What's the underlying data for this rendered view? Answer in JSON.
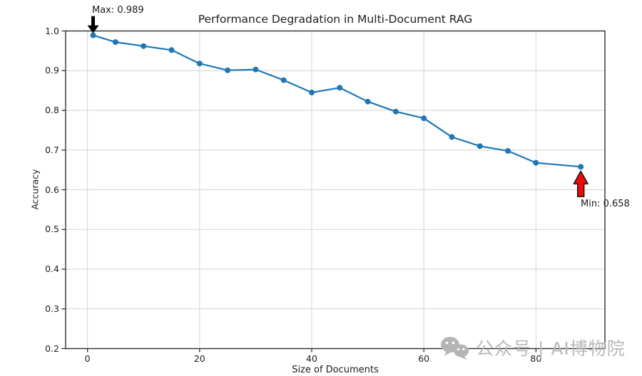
{
  "chart_data": {
    "type": "line",
    "title": "Performance Degradation in Multi-Document RAG",
    "xlabel": "Size of Documents",
    "ylabel": "Accuracy",
    "x": [
      1,
      5,
      10,
      15,
      20,
      25,
      30,
      35,
      40,
      45,
      50,
      55,
      60,
      65,
      70,
      75,
      80,
      88
    ],
    "y": [
      0.989,
      0.972,
      0.962,
      0.952,
      0.918,
      0.901,
      0.903,
      0.876,
      0.845,
      0.857,
      0.822,
      0.797,
      0.78,
      0.733,
      0.71,
      0.698,
      0.668,
      0.658
    ],
    "xlim": [
      -3.9,
      92.3
    ],
    "ylim": [
      0.2,
      1.0
    ],
    "xticks": [
      0,
      20,
      40,
      60,
      80
    ],
    "xtick_labels": [
      "0",
      "20",
      "40",
      "60",
      "80"
    ],
    "yticks": [
      0.2,
      0.3,
      0.4,
      0.5,
      0.6,
      0.7,
      0.8,
      0.9,
      1.0
    ],
    "ytick_labels": [
      "0.2",
      "0.3",
      "0.4",
      "0.5",
      "0.6",
      "0.7",
      "0.8",
      "0.9",
      "1.0"
    ],
    "grid": true,
    "legend_position": "none",
    "line_color": "#1f77b4",
    "grid_color": "#d3d3d3",
    "spine_color": "#2e2e2e",
    "annotations": [
      {
        "text": "Max: 0.989",
        "x": 1,
        "y": 0.989,
        "arrow_dir": "down",
        "arrow_fill": "#000000"
      },
      {
        "text": "Min: 0.658",
        "x": 88,
        "y": 0.658,
        "arrow_dir": "up",
        "arrow_fill": "#ee0a0a"
      }
    ]
  },
  "watermark": {
    "icon": "wechat-icon",
    "text": "公众号 | AI博物院",
    "color": "#b9b9b9"
  }
}
